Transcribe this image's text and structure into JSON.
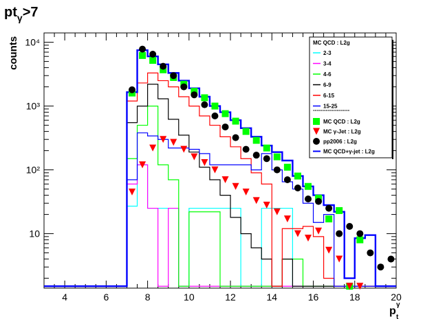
{
  "title": {
    "main": "pt",
    "sub": "γ",
    "suffix": ">7"
  },
  "ylabel": "counts",
  "xlabel": {
    "main": "p",
    "sub": "t",
    "sup": "γ"
  },
  "legend": {
    "header": "MC QCD : L2g",
    "entries": [
      {
        "label": "2-3",
        "color": "#00ffff"
      },
      {
        "label": "3-4",
        "color": "#ff00ff"
      },
      {
        "label": "4-6",
        "color": "#00ff00"
      },
      {
        "label": "6-9",
        "color": "#000000"
      },
      {
        "label": "6-15",
        "color": "#ff0000"
      },
      {
        "label": "15-25",
        "color": "#0000ff"
      }
    ],
    "separator": "--------------------",
    "markers": [
      {
        "label": "MC QCD : L2g",
        "marker": "square",
        "color": "#00ff00"
      },
      {
        "label": "MC γ-Jet : L2g",
        "marker": "triangle",
        "color": "#ff0000"
      },
      {
        "label": "pp2006 : L2g",
        "marker": "circle",
        "color": "#000000"
      },
      {
        "label": "MC QCD+γ-jet : L2g",
        "marker": "line",
        "color": "#0000ff"
      }
    ]
  },
  "chart_data": {
    "type": "line",
    "title": "pt_γ>7",
    "xlabel": "p_t^γ",
    "ylabel": "counts",
    "xlim": [
      3,
      20
    ],
    "ylim": [
      1.4,
      14000
    ],
    "yscale": "log",
    "xticks": [
      "4",
      "6",
      "8",
      "10",
      "12",
      "14",
      "16",
      "18",
      "20"
    ],
    "yticks": [
      "10",
      "10²",
      "10³",
      "10⁴"
    ],
    "bin_edges": [
      3,
      3.5,
      4,
      4.5,
      5,
      5.5,
      6,
      6.5,
      7,
      7.5,
      8,
      8.5,
      9,
      9.5,
      10,
      10.5,
      11,
      11.5,
      12,
      12.5,
      13,
      13.5,
      14,
      14.5,
      15,
      15.5,
      16,
      16.5,
      17,
      17.5,
      18,
      18.5,
      19,
      19.5,
      20
    ],
    "hist_series": [
      {
        "name": "2-3",
        "color": "#00ffff",
        "values": [
          1.5,
          1.5,
          1.5,
          1.5,
          1.5,
          1.5,
          1.5,
          1.5,
          27,
          120,
          25,
          25,
          25,
          1.5,
          25,
          25,
          25,
          25,
          25,
          1.5,
          1.5,
          25,
          25,
          25,
          1.5,
          1.5,
          1.5,
          1.5,
          1.5,
          1.5,
          1.5,
          1.5,
          1.5,
          1.5
        ]
      },
      {
        "name": "3-4",
        "color": "#ff00ff",
        "values": [
          1.5,
          1.5,
          1.5,
          1.5,
          1.5,
          1.5,
          1.5,
          1.5,
          60,
          120,
          25,
          1.5,
          25,
          1.5,
          1.5,
          1.5,
          1.5,
          1.5,
          1.5,
          1.5,
          1.5,
          1.5,
          1.5,
          1.5,
          1.5,
          1.5,
          1.5,
          1.5,
          1.5,
          1.5,
          1.5,
          1.5,
          1.5,
          1.5
        ]
      },
      {
        "name": "4-6",
        "color": "#00ff00",
        "values": [
          1.5,
          1.5,
          1.5,
          1.5,
          1.5,
          1.5,
          1.5,
          1.5,
          150,
          500,
          1000,
          120,
          70,
          1.5,
          22,
          22,
          22,
          1.5,
          1.5,
          1.5,
          1.5,
          1.5,
          1.5,
          4,
          4,
          1.5,
          1.5,
          1.5,
          1.5,
          1.5,
          1.5,
          1.5,
          1.5,
          1.5
        ]
      },
      {
        "name": "6-9",
        "color": "#000000",
        "values": [
          1.5,
          1.5,
          1.5,
          1.5,
          1.5,
          1.5,
          1.5,
          1.5,
          550,
          1000,
          2200,
          1300,
          620,
          350,
          190,
          110,
          70,
          40,
          18,
          10,
          6,
          4,
          1.5,
          4,
          1.5,
          1.5,
          1.5,
          1.5,
          1.5,
          1.5,
          1.5,
          1.5,
          1.5,
          1.5
        ]
      },
      {
        "name": "6-15",
        "color": "#ff0000",
        "values": [
          1.5,
          1.5,
          1.5,
          1.5,
          1.5,
          1.5,
          1.5,
          1.5,
          1200,
          2300,
          3300,
          2500,
          2000,
          1400,
          1000,
          700,
          500,
          330,
          230,
          150,
          90,
          60,
          1.5,
          12,
          12,
          13,
          9,
          2,
          1.5,
          1.5,
          1.5,
          1.5,
          1.5,
          1.5
        ]
      },
      {
        "name": "15-25",
        "color": "#0000ff",
        "values": [
          1.5,
          1.5,
          1.5,
          1.5,
          1.5,
          1.5,
          1.5,
          1.5,
          70,
          380,
          340,
          300,
          220,
          220,
          210,
          180,
          120,
          120,
          120,
          120,
          100,
          180,
          100,
          65,
          50,
          30,
          15,
          20,
          1.5,
          1.5,
          1.5,
          1.5,
          1.5,
          1.5
        ]
      },
      {
        "name": "MC QCD+γ-jet : L2g",
        "color": "#0000ff",
        "width": 2.4,
        "values": [
          1.5,
          1.5,
          1.5,
          1.5,
          1.5,
          1.5,
          1.5,
          1.5,
          1650,
          7500,
          6000,
          4500,
          3300,
          2500,
          1900,
          1400,
          1000,
          800,
          600,
          450,
          330,
          240,
          190,
          140,
          80,
          55,
          40,
          28,
          22,
          2,
          8.5,
          9.5,
          1.5,
          1.5
        ]
      }
    ],
    "scatter_series": [
      {
        "name": "MC QCD : L2g",
        "marker": "square",
        "color": "#00ff00",
        "x": [
          7.25,
          7.75,
          8.25,
          8.75,
          9.25,
          9.75,
          10.25,
          10.75,
          11.25,
          11.75,
          12.25,
          12.75,
          13.25,
          13.75,
          14.25,
          14.75,
          15.25,
          15.75,
          16.25,
          16.75,
          17.25,
          17.75,
          18.25
        ],
        "y": [
          1600,
          6200,
          5200,
          3700,
          2800,
          2200,
          1700,
          1350,
          1000,
          760,
          580,
          400,
          290,
          220,
          160,
          110,
          80,
          55,
          36,
          17,
          23,
          1.5,
          8
        ]
      },
      {
        "name": "MC γ-Jet : L2g",
        "marker": "triangle",
        "color": "#ff0000",
        "x": [
          7.25,
          7.75,
          8.25,
          8.75,
          9.25,
          9.75,
          10.25,
          10.75,
          11.25,
          11.75,
          12.25,
          12.75,
          13.25,
          13.75,
          14.25,
          14.75,
          15.25,
          15.75,
          16.25,
          16.75,
          17.25,
          17.75,
          18.25
        ],
        "y": [
          45,
          120,
          220,
          300,
          270,
          210,
          160,
          130,
          100,
          70,
          55,
          45,
          33,
          28,
          22,
          17,
          10,
          8.5,
          11,
          5.5,
          4,
          1.5,
          1.5
        ]
      },
      {
        "name": "pp2006 : L2g",
        "marker": "circle",
        "color": "#000000",
        "x": [
          7.25,
          7.75,
          8.25,
          8.75,
          9.25,
          9.75,
          10.25,
          10.75,
          11.25,
          11.75,
          12.25,
          12.75,
          13.25,
          13.75,
          14.25,
          14.75,
          15.25,
          15.75,
          16.25,
          16.75,
          17.25,
          17.75,
          18.25,
          18.75,
          19.25,
          19.75
        ],
        "y": [
          1800,
          7800,
          6500,
          4200,
          3000,
          2000,
          1500,
          1050,
          700,
          470,
          320,
          210,
          170,
          150,
          100,
          70,
          52,
          35,
          32,
          25,
          10,
          13,
          10,
          5,
          3,
          4
        ]
      }
    ]
  }
}
